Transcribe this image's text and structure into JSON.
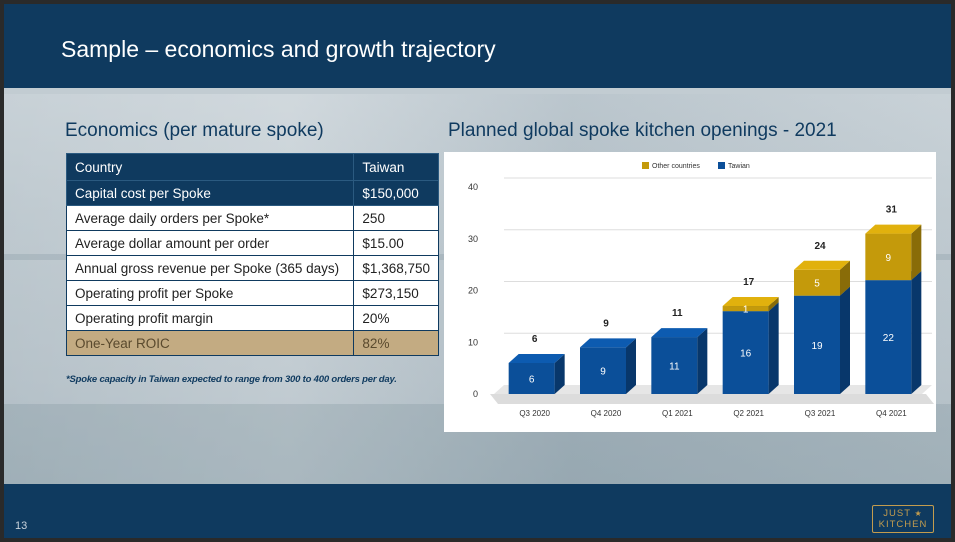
{
  "slide": {
    "title": "Sample – economics and growth trajectory",
    "page_number": "13",
    "logo": {
      "line1": "JUST",
      "line2": "KITCHEN",
      "star": "★"
    }
  },
  "economics": {
    "heading": "Economics (per mature spoke)",
    "header": [
      "Country",
      "Taiwan"
    ],
    "rows": [
      {
        "label": "Capital cost per Spoke",
        "value": "$150,000"
      },
      {
        "label": "Average daily orders per Spoke*",
        "value": "250"
      },
      {
        "label": "Average dollar amount per order",
        "value": "$15.00"
      },
      {
        "label": "Annual gross revenue per Spoke (365 days)",
        "value": "$1,368,750"
      },
      {
        "label": "Operating profit per Spoke",
        "value": "$273,150"
      },
      {
        "label": "Operating profit margin",
        "value": "20%"
      },
      {
        "label": "One-Year ROIC",
        "value": "82%"
      }
    ],
    "footnote": "*Spoke capacity in Taiwan expected to range from 300 to 400 orders per day."
  },
  "chart_heading": "Planned global spoke kitchen openings - 2021",
  "chart_data": {
    "type": "bar",
    "stacked": true,
    "three_d": true,
    "categories": [
      "Q3 2020",
      "Q4 2020",
      "Q1 2021",
      "Q2 2021",
      "Q3 2021",
      "Q4 2021"
    ],
    "series": [
      {
        "name": "Tawian",
        "values": [
          6,
          9,
          11,
          16,
          19,
          22
        ],
        "color": "#0b4f99"
      },
      {
        "name": "Other countries",
        "values": [
          0,
          0,
          0,
          1,
          5,
          9
        ],
        "color": "#c49a0b"
      }
    ],
    "totals": [
      6,
      9,
      11,
      17,
      24,
      31
    ],
    "ylim": [
      0,
      40
    ],
    "yticks": [
      0,
      10,
      20,
      30,
      40
    ],
    "legend": "top-center",
    "grid": true
  }
}
